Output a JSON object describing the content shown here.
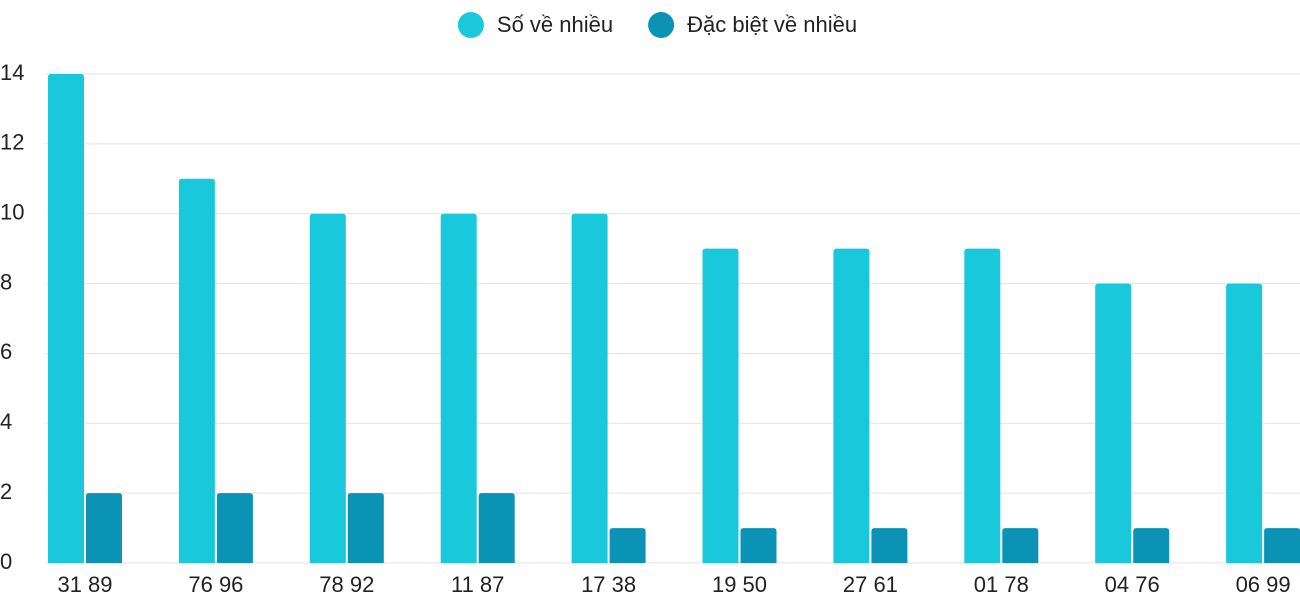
{
  "chart_data": {
    "type": "bar",
    "categories": [
      "31 89",
      "76 96",
      "78 92",
      "11 87",
      "17 38",
      "19 50",
      "27 61",
      "01 78",
      "04 76",
      "06 99"
    ],
    "series": [
      {
        "name": "Số về nhiều",
        "color": "#1ac8db",
        "values": [
          14,
          11,
          10,
          10,
          10,
          9,
          9,
          9,
          8,
          8
        ]
      },
      {
        "name": "Đặc biệt về nhiều",
        "color": "#0b93b5",
        "values": [
          2,
          2,
          2,
          2,
          1,
          1,
          1,
          1,
          1,
          1
        ]
      }
    ],
    "ylim": [
      0,
      14
    ],
    "yticks": [
      0,
      2,
      4,
      6,
      8,
      10,
      12,
      14
    ],
    "grid": true,
    "legend": "top"
  }
}
